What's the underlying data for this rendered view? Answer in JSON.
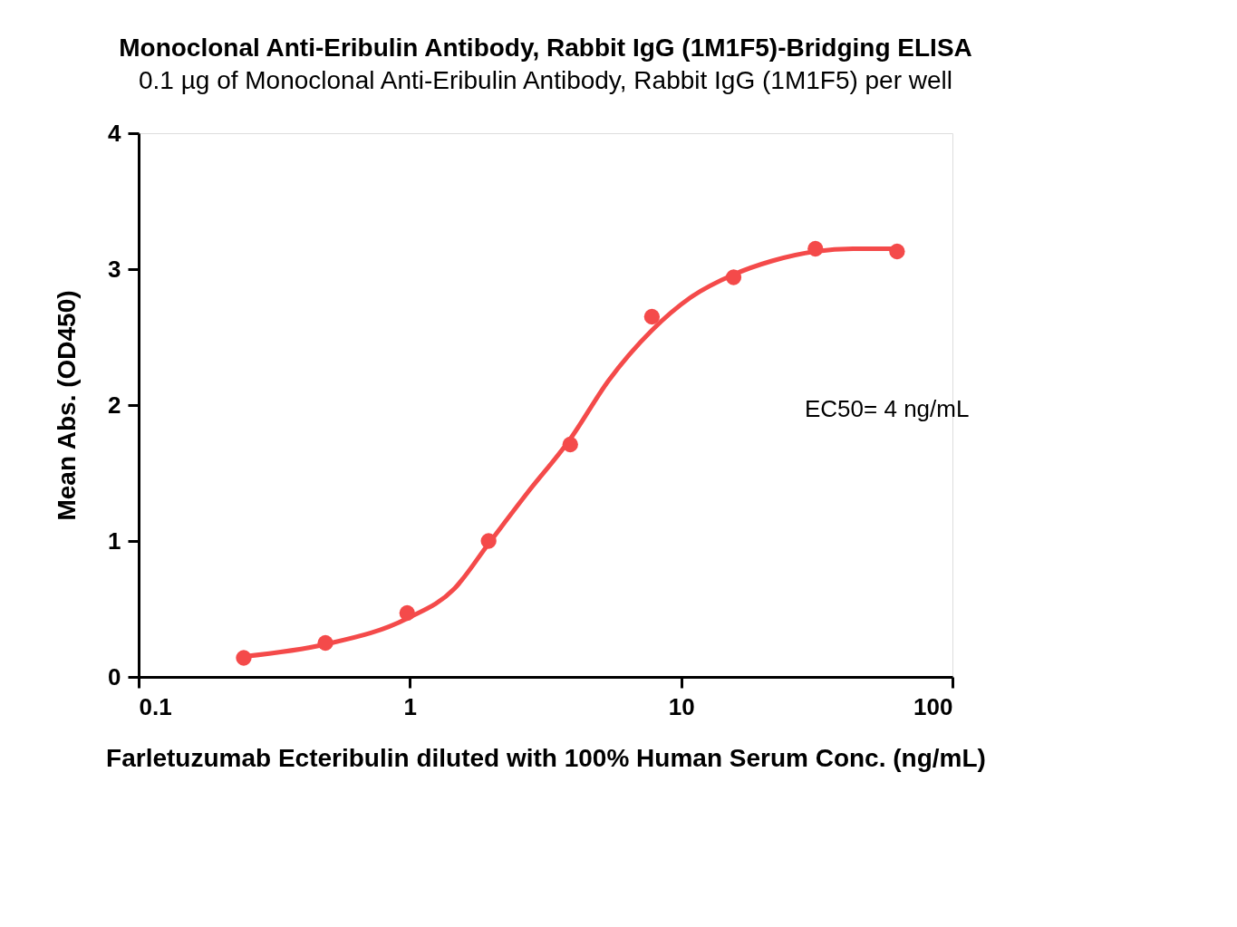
{
  "chart_data": {
    "type": "scatter",
    "title": "Monoclonal Anti-Eribulin Antibody, Rabbit IgG (1M1F5)-Bridging ELISA",
    "subtitle": "0.1 µg of Monoclonal Anti-Eribulin Antibody, Rabbit IgG (1M1F5) per well",
    "xlabel": "Farletuzumab Ecteribulin diluted with 100% Human Serum Conc. (ng/mL)",
    "ylabel": "Mean Abs. (OD450)",
    "annotations": [
      "EC50= 4 ng/mL"
    ],
    "log": "x",
    "xlim": [
      0.1,
      100
    ],
    "xticks": [
      0.1,
      1,
      10,
      100
    ],
    "ylim": [
      0,
      4
    ],
    "yticks": [
      0,
      1,
      2,
      3,
      4
    ],
    "grid": false,
    "legend": false,
    "marker": "circle",
    "series": [
      {
        "type": "line",
        "marker": "none",
        "line_style": "solid",
        "color": "#f44a4a",
        "x": [
          0.244,
          0.488,
          0.977,
          1.46,
          1.95,
          2.7,
          3.9,
          5.4,
          7.8,
          10.8,
          15.6,
          21.6,
          31.25,
          43,
          62.5
        ],
        "values": [
          0.15,
          0.24,
          0.43,
          0.65,
          0.98,
          1.35,
          1.75,
          2.18,
          2.55,
          2.79,
          2.96,
          3.06,
          3.13,
          3.15,
          3.15
        ]
      },
      {
        "color": "#f44a4a",
        "x": [
          0.244,
          0.488,
          0.977,
          1.95,
          3.9,
          7.8,
          15.6,
          31.25,
          62.5
        ],
        "values": [
          0.14,
          0.25,
          0.47,
          1.0,
          1.71,
          2.65,
          2.94,
          3.15,
          3.13
        ]
      }
    ]
  }
}
